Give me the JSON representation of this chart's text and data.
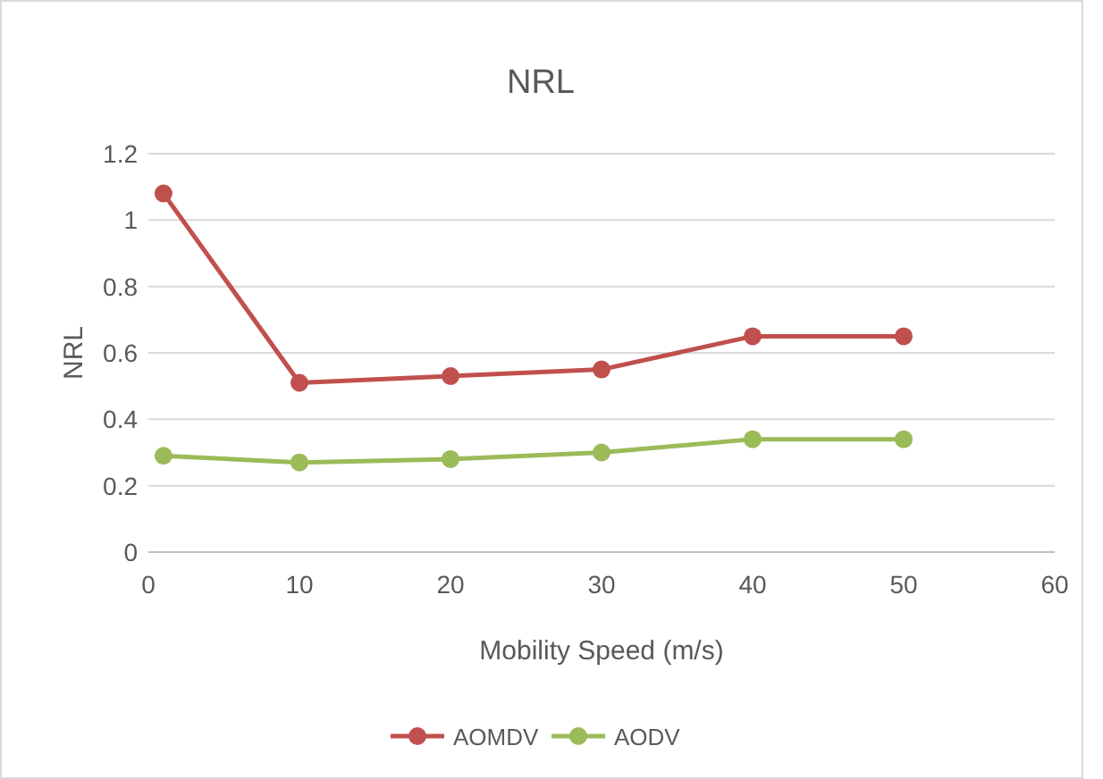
{
  "chart_data": {
    "type": "line",
    "title": "NRL",
    "xlabel": "Mobility Speed (m/s)",
    "ylabel": "NRL",
    "x": [
      1,
      10,
      20,
      30,
      40,
      50
    ],
    "series": [
      {
        "name": "AOMDV",
        "color": "#c0504d",
        "values": [
          1.08,
          0.51,
          0.53,
          0.55,
          0.65,
          0.65
        ]
      },
      {
        "name": "AODV",
        "color": "#9bbb59",
        "values": [
          0.29,
          0.27,
          0.28,
          0.3,
          0.34,
          0.34
        ]
      }
    ],
    "xlim": [
      0,
      60
    ],
    "xticks": [
      0,
      10,
      20,
      30,
      40,
      50,
      60
    ],
    "ylim": [
      0,
      1.2
    ],
    "yticks": [
      0,
      {
        "value": 0.2,
        "label": "0.2"
      },
      {
        "value": 0.4,
        "label": "0.4"
      },
      {
        "value": 0.6,
        "label": "0.6"
      },
      {
        "value": 0.8,
        "label": "0.8"
      },
      1,
      {
        "value": 1.2,
        "label": "1.2"
      }
    ],
    "grid": "y",
    "legend": "bottom",
    "marker": "circle",
    "line_style": "solid"
  }
}
